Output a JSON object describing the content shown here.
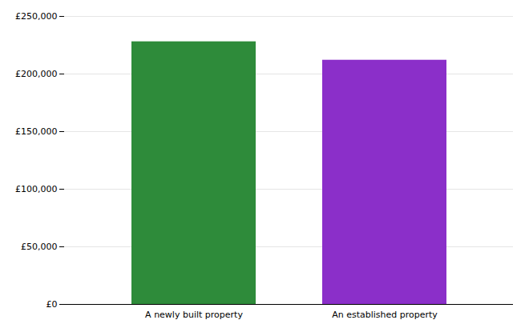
{
  "chart_data": {
    "type": "bar",
    "categories": [
      "A newly built property",
      "An established property"
    ],
    "values": [
      228000,
      212000
    ],
    "colors": [
      "#2e8b3a",
      "#8b2fc9"
    ],
    "ylim": [
      0,
      250000
    ],
    "yticks": [
      {
        "value": 0,
        "label": "£0"
      },
      {
        "value": 50000,
        "label": "£50,000"
      },
      {
        "value": 100000,
        "label": "£100,000"
      },
      {
        "value": 150000,
        "label": "£150,000"
      },
      {
        "value": 200000,
        "label": "£200,000"
      },
      {
        "value": 250000,
        "label": "£250,000"
      }
    ],
    "grid": true
  }
}
